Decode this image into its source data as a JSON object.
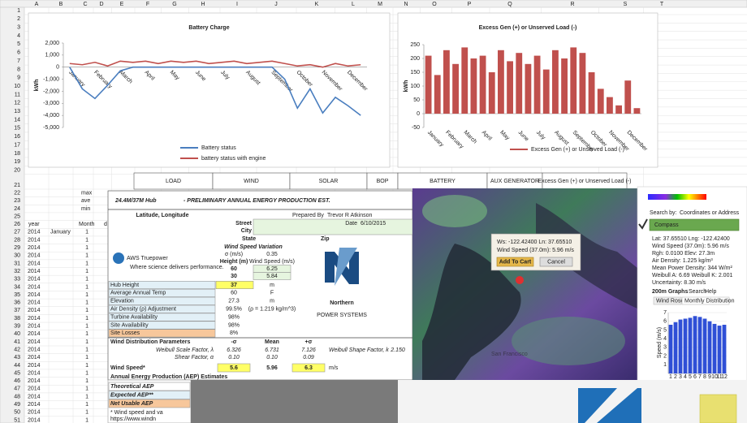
{
  "spreadsheet": {
    "column_letters": [
      "A",
      "B",
      "C",
      "D",
      "E",
      "F",
      "G",
      "H",
      "I",
      "J",
      "K",
      "L",
      "M",
      "N",
      "O",
      "P",
      "Q",
      "R",
      "S",
      "T"
    ],
    "row_numbers": [
      1,
      2,
      3,
      4,
      5,
      6,
      7,
      8,
      9,
      10,
      11,
      12,
      13,
      14,
      15,
      16,
      17,
      18,
      19,
      20,
      21,
      22,
      23,
      24,
      25,
      26,
      27,
      28,
      29,
      30,
      31,
      32,
      33,
      34,
      35,
      36,
      37,
      38,
      39,
      40,
      41,
      42,
      43,
      44,
      45,
      46,
      47,
      48,
      49,
      50,
      51
    ],
    "section_headers": [
      "LOAD",
      "WIND",
      "SOLAR",
      "BOP",
      "BATTERY",
      "AUX GENERATOR",
      "Excess Gen (+) or Unserved Load (-)"
    ],
    "stat_labels": [
      "max",
      "ave",
      "min"
    ],
    "column_titles": [
      "year",
      "Month",
      "d"
    ],
    "month_cell": "January",
    "years": [
      2014,
      2014,
      2014,
      2014,
      2014,
      2014,
      2014,
      2014,
      2014,
      2014,
      2014,
      2014,
      2014,
      2014,
      2014,
      2014,
      2014,
      2014,
      2014,
      2014,
      2014,
      2014,
      2014,
      2014,
      2014
    ],
    "months": [
      1,
      1,
      1,
      1,
      1,
      1,
      1,
      1,
      1,
      1,
      1,
      1,
      1,
      1,
      1,
      1,
      1,
      1,
      1,
      1,
      1,
      1,
      1,
      1,
      1
    ]
  },
  "battery_chart": {
    "type": "line",
    "title": "Battery Charge",
    "y_label": "kWh",
    "categories": [
      "January",
      null,
      "February",
      null,
      "March",
      null,
      "April",
      null,
      "May",
      null,
      "June",
      null,
      "July",
      null,
      "August",
      null,
      "September",
      null,
      "October",
      null,
      "November",
      null,
      "December",
      null
    ],
    "series": [
      {
        "name": "Battery status",
        "color": "#4a7ebf",
        "values": [
          0,
          -1800,
          -2600,
          -1500,
          -300,
          0,
          0,
          0,
          0,
          0,
          0,
          0,
          0,
          0,
          0,
          0,
          0,
          -1000,
          -3400,
          -1800,
          -3800,
          -2500,
          -3200,
          -4000
        ]
      },
      {
        "name": "battery status with engine",
        "color": "#c0504d",
        "values": [
          300,
          200,
          400,
          100,
          500,
          400,
          500,
          300,
          500,
          400,
          500,
          300,
          400,
          500,
          300,
          400,
          500,
          300,
          100,
          200,
          0,
          300,
          100,
          200
        ]
      }
    ],
    "ylim": [
      -5000,
      2000
    ],
    "yticks": [
      {
        "value": 2000,
        "label": "2,000"
      },
      {
        "value": 1000,
        "label": "1,000"
      },
      0,
      {
        "value": -1000,
        "label": "-1,000"
      },
      {
        "value": -2000,
        "label": "-2,000"
      },
      {
        "value": -3000,
        "label": "-3,000"
      },
      {
        "value": -4000,
        "label": "-4,000"
      },
      {
        "value": -5000,
        "label": "-5,000"
      }
    ]
  },
  "excess_chart": {
    "type": "bar",
    "title": "Excess Gen (+) or Unserved Load (-)",
    "y_label": "kWh",
    "categories": [
      "January",
      null,
      "February",
      null,
      "March",
      null,
      "April",
      null,
      "May",
      null,
      "June",
      null,
      "July",
      null,
      "August",
      null,
      "September",
      null,
      "October",
      null,
      "November",
      null,
      "December",
      null
    ],
    "series": [
      {
        "name": "Excess Gen (+) or Unserved Load (-)",
        "color": "#c0504d",
        "values": [
          210,
          140,
          230,
          180,
          240,
          200,
          210,
          150,
          230,
          190,
          220,
          180,
          210,
          160,
          230,
          200,
          240,
          220,
          150,
          90,
          60,
          30,
          120,
          20
        ]
      }
    ],
    "ylim": [
      -50,
      250
    ],
    "yticks": [
      -50,
      0,
      50,
      100,
      150,
      200,
      250
    ]
  },
  "aep": {
    "hub_label": "24.4M/37M Hub",
    "title": "- PRELIMINARY ANNUAL ENERGY PRODUCTION EST.",
    "lat_lng": "Latitude, Longitude",
    "prepared_by": "Prepared By",
    "preparer": "Trevor R Atkinson",
    "street": "Street",
    "date_label": "Date",
    "date": "6/10/2015",
    "city": "City",
    "state": "State",
    "zip": "Zip",
    "wsv_title": "Wind Speed Variation",
    "sigma_label": "σ (m/s)",
    "sigma": "0.35",
    "height_label": "Height (m)",
    "ws_label": "Wind Speed (m/s)",
    "heights": [
      [
        "60",
        "6.25"
      ],
      [
        "30",
        "5.84"
      ]
    ],
    "params": [
      [
        "Hub Height",
        "37",
        "m"
      ],
      [
        "Average Annual Temp",
        "60",
        "F"
      ],
      [
        "Elevation",
        "27.3",
        "m"
      ],
      [
        "Air Density (ρ) Adjustment",
        "99.5%",
        "(ρ = 1.219 kg/m^3)"
      ],
      [
        "Turbine Availability",
        "98%",
        ""
      ],
      [
        "Site Availability",
        "98%",
        ""
      ],
      [
        "Site Losses",
        "8%",
        ""
      ]
    ],
    "dist_title": "Wind Distribution Parameters",
    "dist_cols": [
      "-σ",
      "Mean",
      "+σ"
    ],
    "scale_label": "Weibull Scale Factor, λ",
    "scale": [
      "6.326",
      "6.731",
      "7.126"
    ],
    "shape_label": "Weibull Shape Factor, k",
    "shape": "2.150",
    "shear_label": "Shear Factor, α",
    "shear": [
      "0.10",
      "0.10",
      "0.09"
    ],
    "ws_row_label": "Wind Speed*",
    "ws": [
      "5.6",
      "5.96",
      "6.3"
    ],
    "ws_unit": "m/s",
    "aep_title": "Annual Energy Production (AEP) Estimates",
    "aep_rows": [
      "Theoretical AEP",
      "Expected AEP**",
      "Net Usable AEP"
    ],
    "footnote": "* Wind speed and va",
    "url": "https://www.windn",
    "aws_logo": "AWS Truepower",
    "aws_tagline": "Where science delivers performance.",
    "np_logo_1": "Northern",
    "np_logo_2": "POWER SYSTEMS"
  },
  "map": {
    "popup_lines": [
      "Ws: -122.42400   Ln: 37.65510",
      "Wind Speed (37.0m): 5.96 m/s"
    ],
    "add_cart": "Add To Cart",
    "cancel": "Cancel",
    "city": "San Francisco",
    "search_by": "Search by:",
    "search_mode": "Coordinates or Address",
    "compass": "Compass",
    "info": [
      "Lat: 37.65510     Lng: -122.42400",
      "Wind Speed (37.0m): 5.96 m/s",
      "Rgh: 0.0100        Elev: 27.3m",
      "Air Density: 1.225 kg/m³",
      "Mean Power Density: 344 W/m²",
      "Weibull A: 6.69     Weibull K: 2.001",
      "Uncertainty: 8.30 m/s"
    ],
    "graphs": "200m Graphs",
    "search": "Search",
    "help": "Help",
    "tabs": [
      "Wind Rose",
      "Monthly Distribution"
    ],
    "chart": {
      "type": "bar",
      "y_label": "Speed (m/s)",
      "categories": [
        "1",
        "2",
        "3",
        "4",
        "5",
        "6",
        "7",
        "8",
        "9",
        "10",
        "11",
        "12"
      ],
      "values": [
        5.6,
        5.9,
        6.2,
        6.3,
        6.4,
        6.6,
        6.5,
        6.3,
        6.0,
        5.7,
        5.5,
        5.6
      ],
      "color": "#2f4fd6",
      "ylim": [
        0,
        7
      ],
      "yticks": [
        1,
        2,
        3,
        4,
        5,
        6,
        7
      ]
    }
  }
}
